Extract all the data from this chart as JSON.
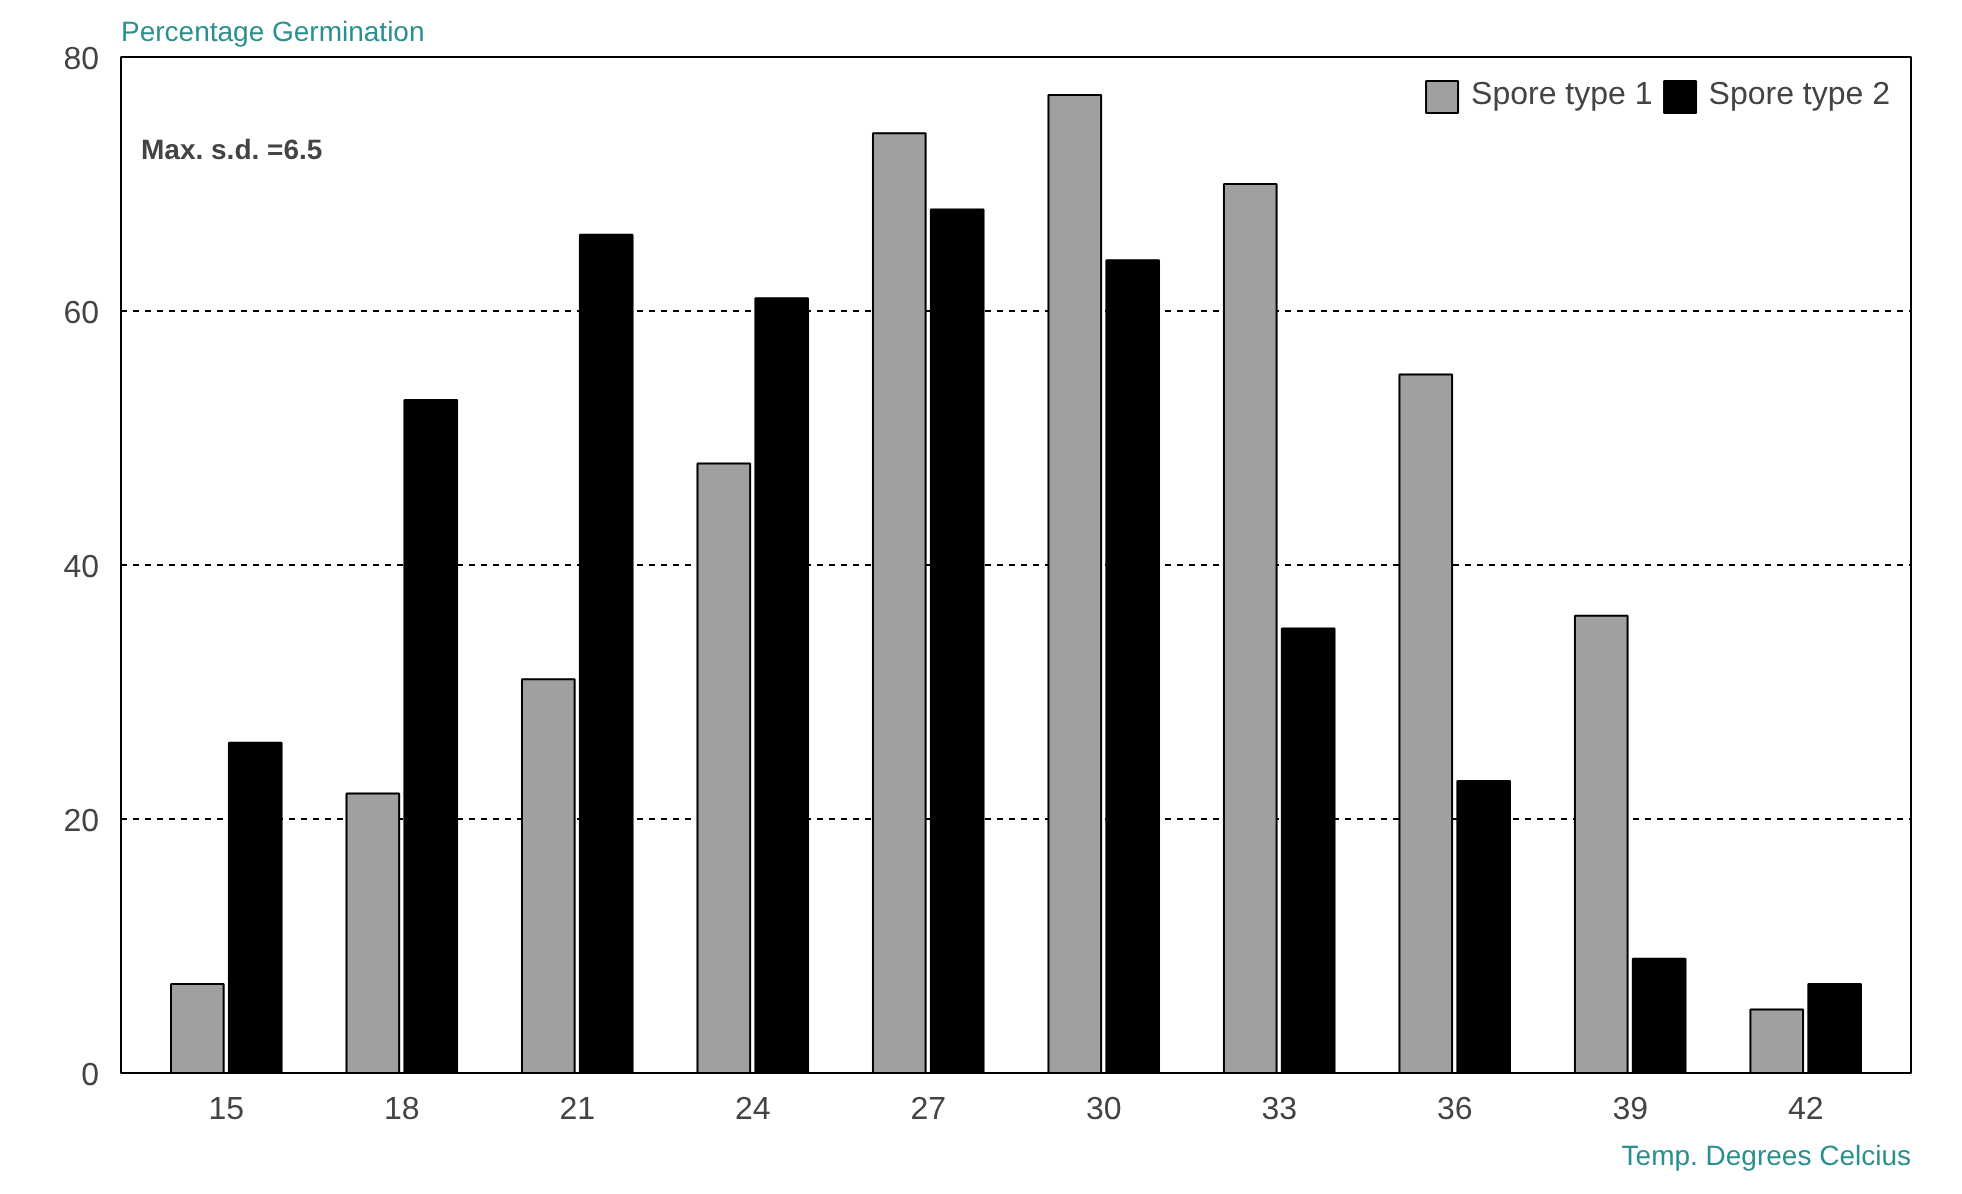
{
  "chart_data": {
    "type": "bar",
    "xlabel": "Temp. Degrees Celcius",
    "ylabel": "Percentage Germination",
    "categories": [
      "15",
      "18",
      "21",
      "24",
      "27",
      "30",
      "33",
      "36",
      "39",
      "42"
    ],
    "series": [
      {
        "name": "Spore type 1",
        "color": "#a0a0a0",
        "values": [
          7,
          22,
          31,
          48,
          74,
          77,
          70,
          55,
          36,
          5
        ]
      },
      {
        "name": "Spore type 2",
        "color": "#000000",
        "values": [
          26,
          53,
          66,
          61,
          68,
          64,
          35,
          23,
          9,
          7
        ]
      }
    ],
    "ylim": [
      0,
      80
    ],
    "yticks": [
      0,
      20,
      40,
      60,
      80
    ],
    "grid": "y",
    "legend": "top right",
    "annotations": [
      "Max. s.d. =6.5"
    ]
  }
}
